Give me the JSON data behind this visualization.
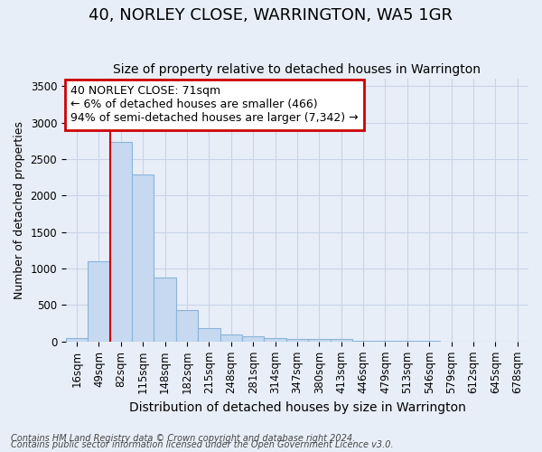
{
  "title": "40, NORLEY CLOSE, WARRINGTON, WA5 1GR",
  "subtitle": "Size of property relative to detached houses in Warrington",
  "xlabel": "Distribution of detached houses by size in Warrington",
  "ylabel": "Number of detached properties",
  "footer1": "Contains HM Land Registry data © Crown copyright and database right 2024.",
  "footer2": "Contains public sector information licensed under the Open Government Licence v3.0.",
  "bin_labels": [
    "16sqm",
    "49sqm",
    "82sqm",
    "115sqm",
    "148sqm",
    "182sqm",
    "215sqm",
    "248sqm",
    "281sqm",
    "314sqm",
    "347sqm",
    "380sqm",
    "413sqm",
    "446sqm",
    "479sqm",
    "513sqm",
    "546sqm",
    "579sqm",
    "612sqm",
    "645sqm",
    "678sqm"
  ],
  "bar_values": [
    50,
    1100,
    2730,
    2290,
    875,
    430,
    185,
    93,
    70,
    50,
    40,
    35,
    30,
    15,
    10,
    6,
    4,
    3,
    2,
    1,
    1
  ],
  "bar_color": "#c6d9f0",
  "bar_edge_color": "#8ab4d9",
  "ylim": [
    0,
    3600
  ],
  "yticks": [
    0,
    500,
    1000,
    1500,
    2000,
    2500,
    3000,
    3500
  ],
  "red_line_bin_index": 2,
  "annotation_text": "40 NORLEY CLOSE: 71sqm\n← 6% of detached houses are smaller (466)\n94% of semi-detached houses are larger (7,342) →",
  "annotation_box_facecolor": "#ffffff",
  "annotation_border_color": "#cc0000",
  "red_line_color": "#cc0000",
  "grid_color": "#c8d4e8",
  "bg_color": "#e8eef8",
  "title_fontsize": 13,
  "subtitle_fontsize": 10,
  "xlabel_fontsize": 10,
  "ylabel_fontsize": 9,
  "tick_fontsize": 8.5,
  "annotation_fontsize": 9,
  "footer_fontsize": 7
}
